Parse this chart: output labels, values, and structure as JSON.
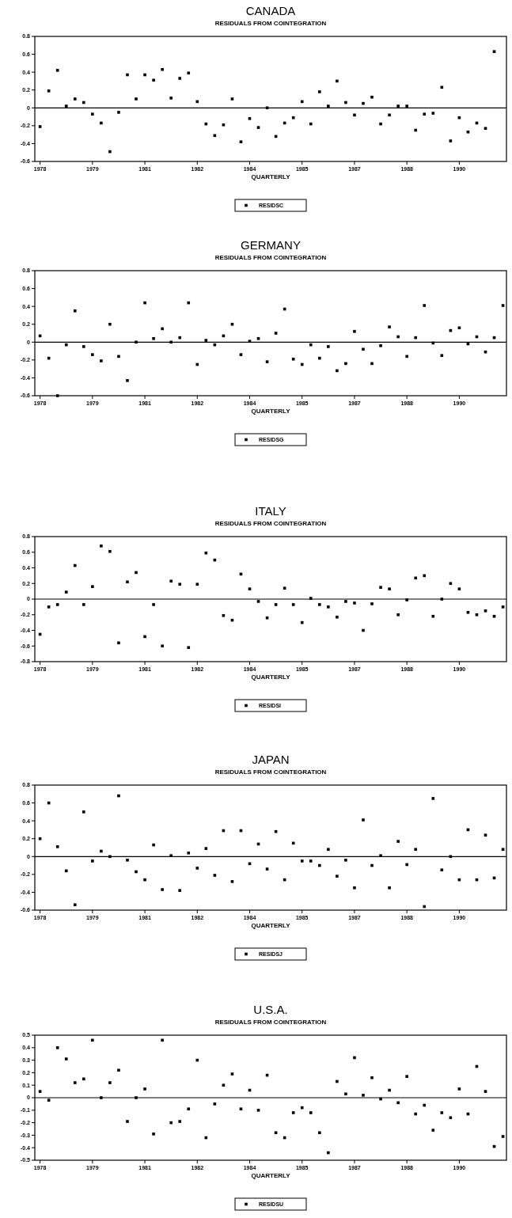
{
  "chart_data": [
    {
      "type": "scatter",
      "title": "CANADA",
      "subtitle": "RESIDUALS FROM COINTEGRATION",
      "xlabel": "QUARTERLY",
      "marker": "square",
      "legend": "bottom",
      "grid": false,
      "x": [
        1978,
        1978.25,
        1978.5,
        1978.75,
        1979,
        1979.25,
        1979.5,
        1979.75,
        1980,
        1980.25,
        1980.5,
        1980.75,
        1981,
        1981.25,
        1981.5,
        1981.75,
        1982,
        1982.25,
        1982.5,
        1982.75,
        1983,
        1983.25,
        1983.5,
        1983.75,
        1984,
        1984.25,
        1984.5,
        1984.75,
        1985,
        1985.25,
        1985.5,
        1985.75,
        1986,
        1986.25,
        1986.5,
        1986.75,
        1987,
        1987.25,
        1987.5,
        1987.75,
        1988,
        1988.25,
        1988.5,
        1988.75,
        1989,
        1989.25,
        1989.5,
        1989.75,
        1990,
        1990.25,
        1990.5,
        1990.75,
        1991
      ],
      "series": [
        {
          "name": "RESIDSC",
          "color": "#000000",
          "values": [
            -0.21,
            0.19,
            0.42,
            0.02,
            0.1,
            0.06,
            -0.07,
            -0.17,
            -0.49,
            -0.05,
            0.37,
            0.1,
            0.37,
            0.31,
            0.43,
            0.11,
            0.33,
            0.39,
            0.07,
            -0.18,
            -0.31,
            -0.19,
            0.1,
            -0.38,
            -0.12,
            -0.22,
            0,
            -0.32,
            -0.17,
            -0.11,
            0.07,
            -0.18,
            0.18,
            0.02,
            0.3,
            0.06,
            -0.08,
            0.05,
            0.12,
            -0.18,
            -0.08,
            0.02,
            0.02,
            -0.25,
            -0.07,
            -0.06,
            0.23,
            -0.37,
            -0.11,
            -0.27,
            -0.17,
            -0.23,
            0.63
          ]
        }
      ],
      "xlim": [
        1977.85,
        1991.35
      ],
      "xticks": [
        {
          "value": 1978,
          "label": "1978"
        },
        {
          "value": 1979.5,
          "label": "1979"
        },
        {
          "value": 1981,
          "label": "1981"
        },
        {
          "value": 1982.5,
          "label": "1982"
        },
        {
          "value": 1984,
          "label": "1984"
        },
        {
          "value": 1985.5,
          "label": "1985"
        },
        {
          "value": 1987,
          "label": "1987"
        },
        {
          "value": 1988.5,
          "label": "1988"
        },
        {
          "value": 1990,
          "label": "1990"
        }
      ],
      "ylim": [
        -0.6,
        0.8
      ],
      "yticks": [
        -0.6,
        -0.4,
        -0.2,
        0,
        0.2,
        0.4,
        0.6,
        0.8
      ],
      "ref_lines": [
        {
          "axis": "y",
          "value": 0
        }
      ]
    },
    {
      "type": "scatter",
      "title": "GERMANY",
      "subtitle": "RESIDUALS FROM COINTEGRATION",
      "xlabel": "QUARTERLY",
      "marker": "square",
      "legend": "bottom",
      "grid": false,
      "x": [
        1978,
        1978.25,
        1978.5,
        1978.75,
        1979,
        1979.25,
        1979.5,
        1979.75,
        1980,
        1980.25,
        1980.5,
        1980.75,
        1981,
        1981.25,
        1981.5,
        1981.75,
        1982,
        1982.25,
        1982.5,
        1982.75,
        1983,
        1983.25,
        1983.5,
        1983.75,
        1984,
        1984.25,
        1984.5,
        1984.75,
        1985,
        1985.25,
        1985.5,
        1985.75,
        1986,
        1986.25,
        1986.5,
        1986.75,
        1987,
        1987.25,
        1987.5,
        1987.75,
        1988,
        1988.25,
        1988.5,
        1988.75,
        1989,
        1989.25,
        1989.5,
        1989.75,
        1990,
        1990.25,
        1990.5,
        1990.75,
        1991,
        1991.25
      ],
      "series": [
        {
          "name": "RESIDSG",
          "color": "#000000",
          "values": [
            0.07,
            -0.18,
            -0.6,
            -0.03,
            0.35,
            -0.05,
            -0.14,
            -0.21,
            0.2,
            -0.16,
            -0.43,
            0,
            0.44,
            0.04,
            0.15,
            0,
            0.05,
            0.44,
            -0.25,
            0.02,
            -0.03,
            0.07,
            0.2,
            -0.14,
            0.01,
            0.04,
            -0.22,
            0.1,
            0.37,
            -0.19,
            -0.25,
            -0.03,
            -0.18,
            -0.05,
            -0.32,
            -0.24,
            0.12,
            -0.08,
            -0.24,
            -0.04,
            0.17,
            0.06,
            -0.16,
            0.05,
            0.41,
            -0.01,
            -0.15,
            0.13,
            0.16,
            -0.02,
            0.06,
            -0.11,
            0.05,
            0.41
          ]
        }
      ],
      "xlim": [
        1977.85,
        1991.35
      ],
      "xticks": [
        {
          "value": 1978,
          "label": "1978"
        },
        {
          "value": 1979.5,
          "label": "1979"
        },
        {
          "value": 1981,
          "label": "1981"
        },
        {
          "value": 1982.5,
          "label": "1982"
        },
        {
          "value": 1984,
          "label": "1984"
        },
        {
          "value": 1985.5,
          "label": "1985"
        },
        {
          "value": 1987,
          "label": "1987"
        },
        {
          "value": 1988.5,
          "label": "1988"
        },
        {
          "value": 1990,
          "label": "1990"
        }
      ],
      "ylim": [
        -0.6,
        0.8
      ],
      "yticks": [
        -0.6,
        -0.4,
        -0.2,
        0,
        0.2,
        0.4,
        0.6,
        0.8
      ],
      "ref_lines": [
        {
          "axis": "y",
          "value": 0
        }
      ]
    },
    {
      "type": "scatter",
      "title": "ITALY",
      "subtitle": "RESIDUALS FROM COINTEGRATION",
      "xlabel": "QUARTERLY",
      "marker": "square",
      "legend": "bottom",
      "grid": false,
      "x": [
        1978,
        1978.25,
        1978.5,
        1978.75,
        1979,
        1979.25,
        1979.5,
        1979.75,
        1980,
        1980.25,
        1980.5,
        1980.75,
        1981,
        1981.25,
        1981.5,
        1981.75,
        1982,
        1982.25,
        1982.5,
        1982.75,
        1983,
        1983.25,
        1983.5,
        1983.75,
        1984,
        1984.25,
        1984.5,
        1984.75,
        1985,
        1985.25,
        1985.5,
        1985.75,
        1986,
        1986.25,
        1986.5,
        1986.75,
        1987,
        1987.25,
        1987.5,
        1987.75,
        1988,
        1988.25,
        1988.5,
        1988.75,
        1989,
        1989.25,
        1989.5,
        1989.75,
        1990,
        1990.25,
        1990.5,
        1990.75,
        1991,
        1991.25
      ],
      "series": [
        {
          "name": "RESIDSI",
          "color": "#000000",
          "values": [
            -0.45,
            -0.1,
            -0.07,
            0.09,
            0.43,
            -0.07,
            0.16,
            0.68,
            0.61,
            -0.56,
            0.22,
            0.34,
            -0.48,
            -0.07,
            -0.6,
            0.23,
            0.19,
            -0.62,
            0.19,
            0.59,
            0.5,
            -0.21,
            -0.27,
            0.32,
            0.13,
            -0.03,
            -0.24,
            -0.07,
            0.14,
            -0.07,
            -0.3,
            0.01,
            -0.07,
            -0.1,
            -0.23,
            -0.03,
            -0.05,
            -0.4,
            -0.06,
            0.15,
            0.13,
            -0.2,
            -0.01,
            0.27,
            0.3,
            -0.22,
            0,
            0.2,
            0.13,
            -0.17,
            -0.2,
            -0.15,
            -0.22,
            -0.1
          ]
        }
      ],
      "xlim": [
        1977.85,
        1991.35
      ],
      "xticks": [
        {
          "value": 1978,
          "label": "1978"
        },
        {
          "value": 1979.5,
          "label": "1979"
        },
        {
          "value": 1981,
          "label": "1981"
        },
        {
          "value": 1982.5,
          "label": "1982"
        },
        {
          "value": 1984,
          "label": "1984"
        },
        {
          "value": 1985.5,
          "label": "1985"
        },
        {
          "value": 1987,
          "label": "1987"
        },
        {
          "value": 1988.5,
          "label": "1988"
        },
        {
          "value": 1990,
          "label": "1990"
        }
      ],
      "ylim": [
        -0.8,
        0.8
      ],
      "yticks": [
        -0.8,
        -0.6,
        -0.4,
        -0.2,
        0,
        0.2,
        0.4,
        0.6,
        0.8
      ],
      "ref_lines": [
        {
          "axis": "y",
          "value": 0
        }
      ]
    },
    {
      "type": "scatter",
      "title": "JAPAN",
      "subtitle": "RESIDUALS FROM COINTEGRATION",
      "xlabel": "QUARTERLY",
      "marker": "square",
      "legend": "bottom",
      "grid": false,
      "x": [
        1978,
        1978.25,
        1978.5,
        1978.75,
        1979,
        1979.25,
        1979.5,
        1979.75,
        1980,
        1980.25,
        1980.5,
        1980.75,
        1981,
        1981.25,
        1981.5,
        1981.75,
        1982,
        1982.25,
        1982.5,
        1982.75,
        1983,
        1983.25,
        1983.5,
        1983.75,
        1984,
        1984.25,
        1984.5,
        1984.75,
        1985,
        1985.25,
        1985.5,
        1985.75,
        1986,
        1986.25,
        1986.5,
        1986.75,
        1987,
        1987.25,
        1987.5,
        1987.75,
        1988,
        1988.25,
        1988.5,
        1988.75,
        1989,
        1989.25,
        1989.5,
        1989.75,
        1990,
        1990.25,
        1990.5,
        1990.75,
        1991,
        1991.25
      ],
      "series": [
        {
          "name": "RESIDSJ",
          "color": "#000000",
          "values": [
            0.2,
            0.6,
            0.11,
            -0.16,
            -0.54,
            0.5,
            -0.05,
            0.06,
            0,
            0.68,
            -0.04,
            -0.17,
            -0.26,
            0.13,
            -0.37,
            0.01,
            -0.38,
            0.04,
            -0.13,
            0.09,
            -0.21,
            0.29,
            -0.28,
            0.29,
            -0.08,
            0.14,
            -0.14,
            0.28,
            -0.26,
            0.15,
            -0.05,
            -0.05,
            -0.1,
            0.08,
            -0.22,
            -0.04,
            -0.35,
            0.41,
            -0.1,
            0.01,
            -0.35,
            0.17,
            -0.09,
            0.08,
            -0.56,
            0.65,
            -0.15,
            0,
            -0.26,
            0.3,
            -0.26,
            0.24,
            -0.24,
            0.08
          ]
        }
      ],
      "xlim": [
        1977.85,
        1991.35
      ],
      "xticks": [
        {
          "value": 1978,
          "label": "1978"
        },
        {
          "value": 1979.5,
          "label": "1979"
        },
        {
          "value": 1981,
          "label": "1981"
        },
        {
          "value": 1982.5,
          "label": "1982"
        },
        {
          "value": 1984,
          "label": "1984"
        },
        {
          "value": 1985.5,
          "label": "1985"
        },
        {
          "value": 1987,
          "label": "1987"
        },
        {
          "value": 1988.5,
          "label": "1988"
        },
        {
          "value": 1990,
          "label": "1990"
        }
      ],
      "ylim": [
        -0.6,
        0.8
      ],
      "yticks": [
        -0.6,
        -0.4,
        -0.2,
        0,
        0.2,
        0.4,
        0.6,
        0.8
      ],
      "ref_lines": [
        {
          "axis": "y",
          "value": 0
        }
      ]
    },
    {
      "type": "scatter",
      "title": "U.S.A.",
      "subtitle": "RESIDUALS FROM COINTEGRATION",
      "xlabel": "QUARTERLY",
      "marker": "square",
      "legend": "bottom",
      "grid": false,
      "x": [
        1978,
        1978.25,
        1978.5,
        1978.75,
        1979,
        1979.25,
        1979.5,
        1979.75,
        1980,
        1980.25,
        1980.5,
        1980.75,
        1981,
        1981.25,
        1981.5,
        1981.75,
        1982,
        1982.25,
        1982.5,
        1982.75,
        1983,
        1983.25,
        1983.5,
        1983.75,
        1984,
        1984.25,
        1984.5,
        1984.75,
        1985,
        1985.25,
        1985.5,
        1985.75,
        1986,
        1986.25,
        1986.5,
        1986.75,
        1987,
        1987.25,
        1987.5,
        1987.75,
        1988,
        1988.25,
        1988.5,
        1988.75,
        1989,
        1989.25,
        1989.5,
        1989.75,
        1990,
        1990.25,
        1990.5,
        1990.75,
        1991,
        1991.25
      ],
      "series": [
        {
          "name": "RESIDSU",
          "color": "#000000",
          "values": [
            0.05,
            -0.02,
            0.4,
            0.31,
            0.12,
            0.15,
            0.46,
            0,
            0.12,
            0.22,
            -0.19,
            0,
            0.07,
            -0.29,
            0.46,
            -0.2,
            -0.19,
            -0.09,
            0.3,
            -0.32,
            -0.05,
            0.1,
            0.19,
            -0.09,
            0.06,
            -0.1,
            0.18,
            -0.28,
            -0.32,
            -0.12,
            -0.08,
            -0.12,
            -0.28,
            -0.44,
            0.13,
            0.03,
            0.32,
            0.02,
            0.16,
            -0.01,
            0.06,
            -0.04,
            0.17,
            -0.13,
            -0.06,
            -0.26,
            -0.12,
            -0.16,
            0.07,
            -0.13,
            0.25,
            0.05,
            -0.39,
            -0.31
          ]
        }
      ],
      "xlim": [
        1977.85,
        1991.35
      ],
      "xticks": [
        {
          "value": 1978,
          "label": "1978"
        },
        {
          "value": 1979.5,
          "label": "1979"
        },
        {
          "value": 1981,
          "label": "1981"
        },
        {
          "value": 1982.5,
          "label": "1982"
        },
        {
          "value": 1984,
          "label": "1984"
        },
        {
          "value": 1985.5,
          "label": "1985"
        },
        {
          "value": 1987,
          "label": "1987"
        },
        {
          "value": 1988.5,
          "label": "1988"
        },
        {
          "value": 1990,
          "label": "1990"
        }
      ],
      "ylim": [
        -0.5,
        0.5
      ],
      "yticks": [
        -0.5,
        -0.4,
        -0.3,
        -0.2,
        -0.1,
        0,
        0.1,
        0.2,
        0.3,
        0.4,
        0.5
      ],
      "ref_lines": [
        {
          "axis": "y",
          "value": 0
        }
      ]
    }
  ]
}
